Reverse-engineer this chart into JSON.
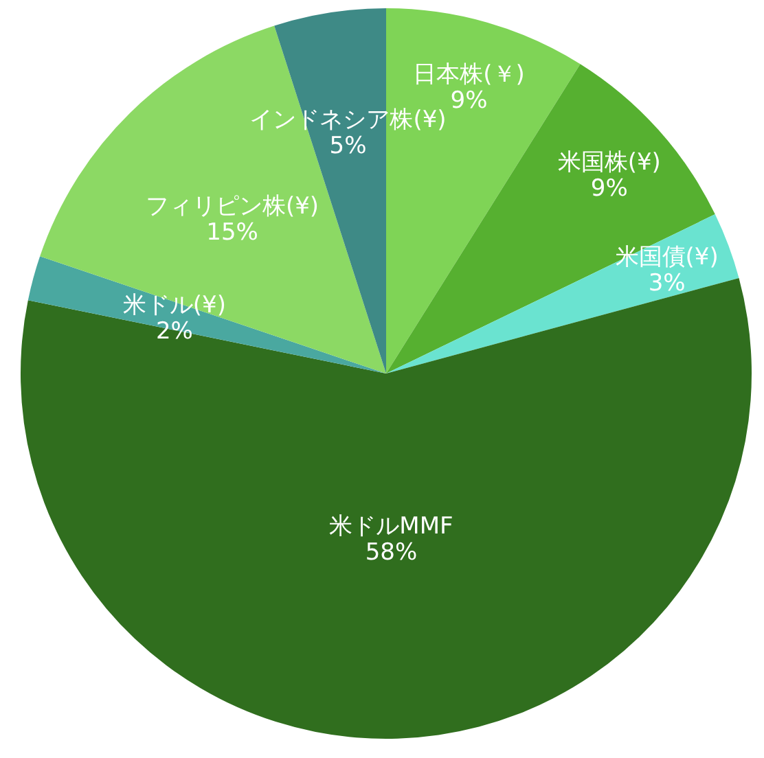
{
  "chart_data": {
    "type": "pie",
    "categories": [
      "日本株(￥)",
      "米国株(¥)",
      "米国債(¥)",
      "米ドルMMF",
      "米ドル(¥)",
      "フィリピン株(¥)",
      "インドネシア株(¥)"
    ],
    "values": [
      9,
      9,
      3,
      58,
      2,
      15,
      5
    ],
    "value_labels": [
      "9%",
      "9%",
      "3%",
      "58%",
      "2%",
      "15%",
      "5%"
    ],
    "colors": [
      "#7fd456",
      "#56b030",
      "#6ae3d0",
      "#306e1e",
      "#4aa8a0",
      "#8cd964",
      "#3e8a86"
    ]
  }
}
